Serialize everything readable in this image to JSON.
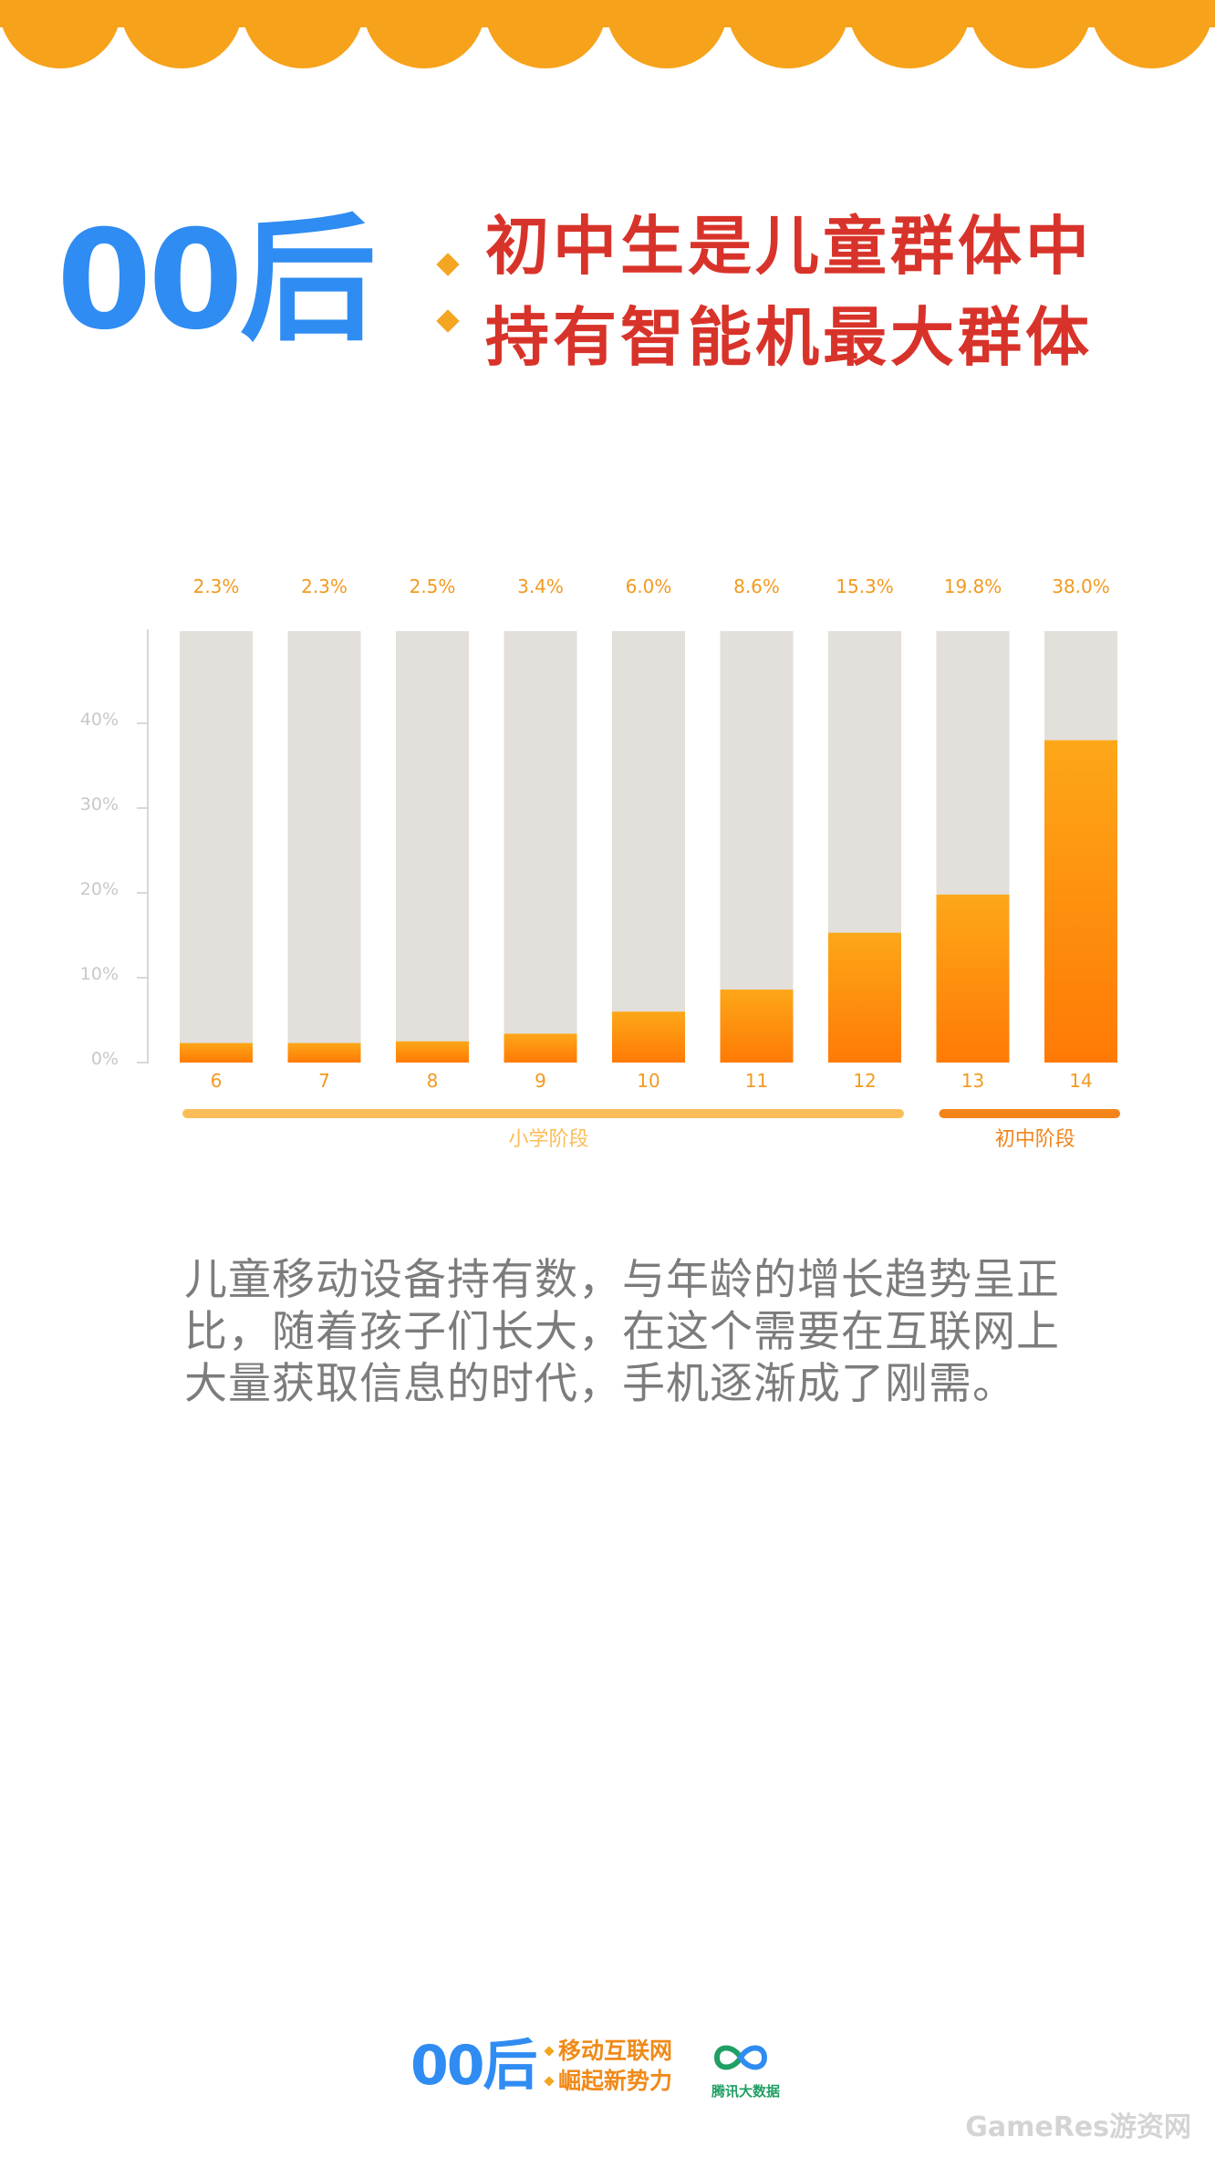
{
  "header": {
    "brand": "00后",
    "title_line1": "初中生是儿童群体中",
    "title_line2": "持有智能机最大群体"
  },
  "colors": {
    "banner": "#f7a21b",
    "brand_blue": "#2f8cf2",
    "title_red": "#d8332a",
    "bar_track": "#e3dfda",
    "bar_fill_top": "#fda718",
    "bar_fill_bottom": "#ff7a05",
    "label_orange": "#f29a20",
    "axis_grey": "#cccccc",
    "primary_group": "#fbbd57",
    "middle_group": "#f2841a"
  },
  "chart_data": {
    "type": "bar",
    "categories": [
      "6",
      "7",
      "8",
      "9",
      "10",
      "11",
      "12",
      "13",
      "14"
    ],
    "values": [
      2.3,
      2.3,
      2.5,
      3.4,
      6.0,
      8.6,
      15.3,
      19.8,
      38.0
    ],
    "value_labels": [
      "2.3%",
      "2.3%",
      "2.5%",
      "3.4%",
      "6.0%",
      "8.6%",
      "15.3%",
      "19.8%",
      "38.0%"
    ],
    "y_ticks": [
      "0%",
      "10%",
      "20%",
      "30%",
      "40%"
    ],
    "groups": [
      {
        "label": "小学阶段",
        "from": "6",
        "to": "12"
      },
      {
        "label": "初中阶段",
        "from": "13",
        "to": "14"
      }
    ],
    "title": "",
    "xlabel": "",
    "ylabel": ""
  },
  "body_text": "儿童移动设备持有数，与年龄的增长趋势呈正比，随着孩子们长大，在这个需要在互联网上大量获取信息的时代，手机逐渐成了刚需。",
  "footer": {
    "brand": "00后",
    "line1": "移动互联网",
    "line2": "崛起新势力",
    "logo_label": "腾讯大数据",
    "logo_icon": "infinity-loop-icon"
  },
  "watermark": "GameRes游资网"
}
